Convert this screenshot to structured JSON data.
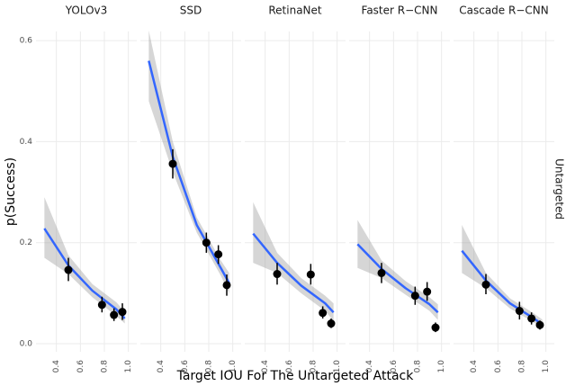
{
  "ylabel": "p(Success)",
  "xlabel": "Target IOU For The Untargeted Attack",
  "row_label": "Untargeted",
  "chart_data": [
    {
      "type": "scatter",
      "title": "YOLOv3",
      "ylim": [
        -0.016,
        0.618
      ],
      "yticks": [
        {
          "value": 0,
          "label": "0.0"
        },
        0.2,
        0.4,
        0.6
      ],
      "xlim": [
        0.23,
        1.07
      ],
      "xticks": [
        0.4,
        0.6,
        0.8,
        {
          "value": 1,
          "label": "1.0"
        }
      ],
      "x": [
        0.5,
        0.78,
        0.88,
        0.95
      ],
      "values": [
        0.146,
        0.077,
        0.057,
        0.063
      ],
      "ymin": [
        0.124,
        0.062,
        0.045,
        0.047
      ],
      "ymax": [
        0.17,
        0.093,
        0.07,
        0.08
      ],
      "fit_x": [
        0.3,
        0.5,
        0.7,
        0.9,
        0.97
      ],
      "fit": [
        0.228,
        0.155,
        0.105,
        0.068,
        0.05
      ],
      "fit_lower": [
        0.17,
        0.138,
        0.092,
        0.055,
        0.04
      ],
      "fit_upper": [
        0.29,
        0.175,
        0.118,
        0.082,
        0.063
      ]
    },
    {
      "type": "scatter",
      "title": "SSD",
      "xlim": [
        0.23,
        1.07
      ],
      "xticks": [
        0.4,
        0.6,
        0.8,
        {
          "value": 1,
          "label": "1.0"
        }
      ],
      "x": [
        0.5,
        0.78,
        0.88,
        0.95
      ],
      "values": [
        0.356,
        0.2,
        0.177,
        0.116
      ],
      "ymin": [
        0.327,
        0.18,
        0.158,
        0.095
      ],
      "ymax": [
        0.385,
        0.22,
        0.195,
        0.137
      ],
      "fit_x": [
        0.3,
        0.5,
        0.7,
        0.9,
        0.97
      ],
      "fit": [
        0.56,
        0.37,
        0.235,
        0.15,
        0.12
      ],
      "fit_lower": [
        0.48,
        0.34,
        0.22,
        0.135,
        0.1
      ],
      "fit_upper": [
        0.62,
        0.4,
        0.25,
        0.165,
        0.14
      ]
    },
    {
      "type": "scatter",
      "title": "RetinaNet",
      "xlim": [
        0.23,
        1.07
      ],
      "xticks": [
        0.4,
        0.6,
        0.8,
        {
          "value": 1,
          "label": "1.0"
        }
      ],
      "x": [
        0.5,
        0.78,
        0.88,
        0.95
      ],
      "values": [
        0.138,
        0.137,
        0.061,
        0.04
      ],
      "ymin": [
        0.117,
        0.117,
        0.05,
        0.031
      ],
      "ymax": [
        0.16,
        0.158,
        0.074,
        0.05
      ],
      "fit_x": [
        0.3,
        0.5,
        0.7,
        0.9,
        0.97
      ],
      "fit": [
        0.218,
        0.16,
        0.115,
        0.08,
        0.062
      ],
      "fit_lower": [
        0.16,
        0.14,
        0.1,
        0.065,
        0.045
      ],
      "fit_upper": [
        0.28,
        0.18,
        0.13,
        0.095,
        0.08
      ]
    },
    {
      "type": "scatter",
      "title": "Faster R−CNN",
      "xlim": [
        0.23,
        1.07
      ],
      "xticks": [
        0.4,
        0.6,
        0.8,
        {
          "value": 1,
          "label": "1.0"
        }
      ],
      "x": [
        0.5,
        0.78,
        0.88,
        0.95
      ],
      "values": [
        0.14,
        0.095,
        0.103,
        0.032
      ],
      "ymin": [
        0.12,
        0.077,
        0.085,
        0.023
      ],
      "ymax": [
        0.16,
        0.113,
        0.122,
        0.042
      ],
      "fit_x": [
        0.3,
        0.5,
        0.7,
        0.9,
        0.97
      ],
      "fit": [
        0.197,
        0.148,
        0.11,
        0.078,
        0.062
      ],
      "fit_lower": [
        0.15,
        0.13,
        0.097,
        0.065,
        0.047
      ],
      "fit_upper": [
        0.245,
        0.165,
        0.124,
        0.092,
        0.078
      ]
    },
    {
      "type": "scatter",
      "title": "Cascade R−CNN",
      "xlim": [
        0.23,
        1.07
      ],
      "xticks": [
        0.4,
        0.6,
        0.8,
        {
          "value": 1,
          "label": "1.0"
        }
      ],
      "x": [
        0.5,
        0.78,
        0.88,
        0.95
      ],
      "values": [
        0.117,
        0.065,
        0.05,
        0.037
      ],
      "ymin": [
        0.098,
        0.048,
        0.038,
        0.028
      ],
      "ymax": [
        0.138,
        0.083,
        0.062,
        0.046
      ],
      "fit_x": [
        0.3,
        0.5,
        0.7,
        0.9,
        0.97
      ],
      "fit": [
        0.184,
        0.125,
        0.08,
        0.05,
        0.038
      ],
      "fit_lower": [
        0.14,
        0.11,
        0.07,
        0.042,
        0.03
      ],
      "fit_upper": [
        0.235,
        0.14,
        0.09,
        0.06,
        0.048
      ]
    }
  ]
}
